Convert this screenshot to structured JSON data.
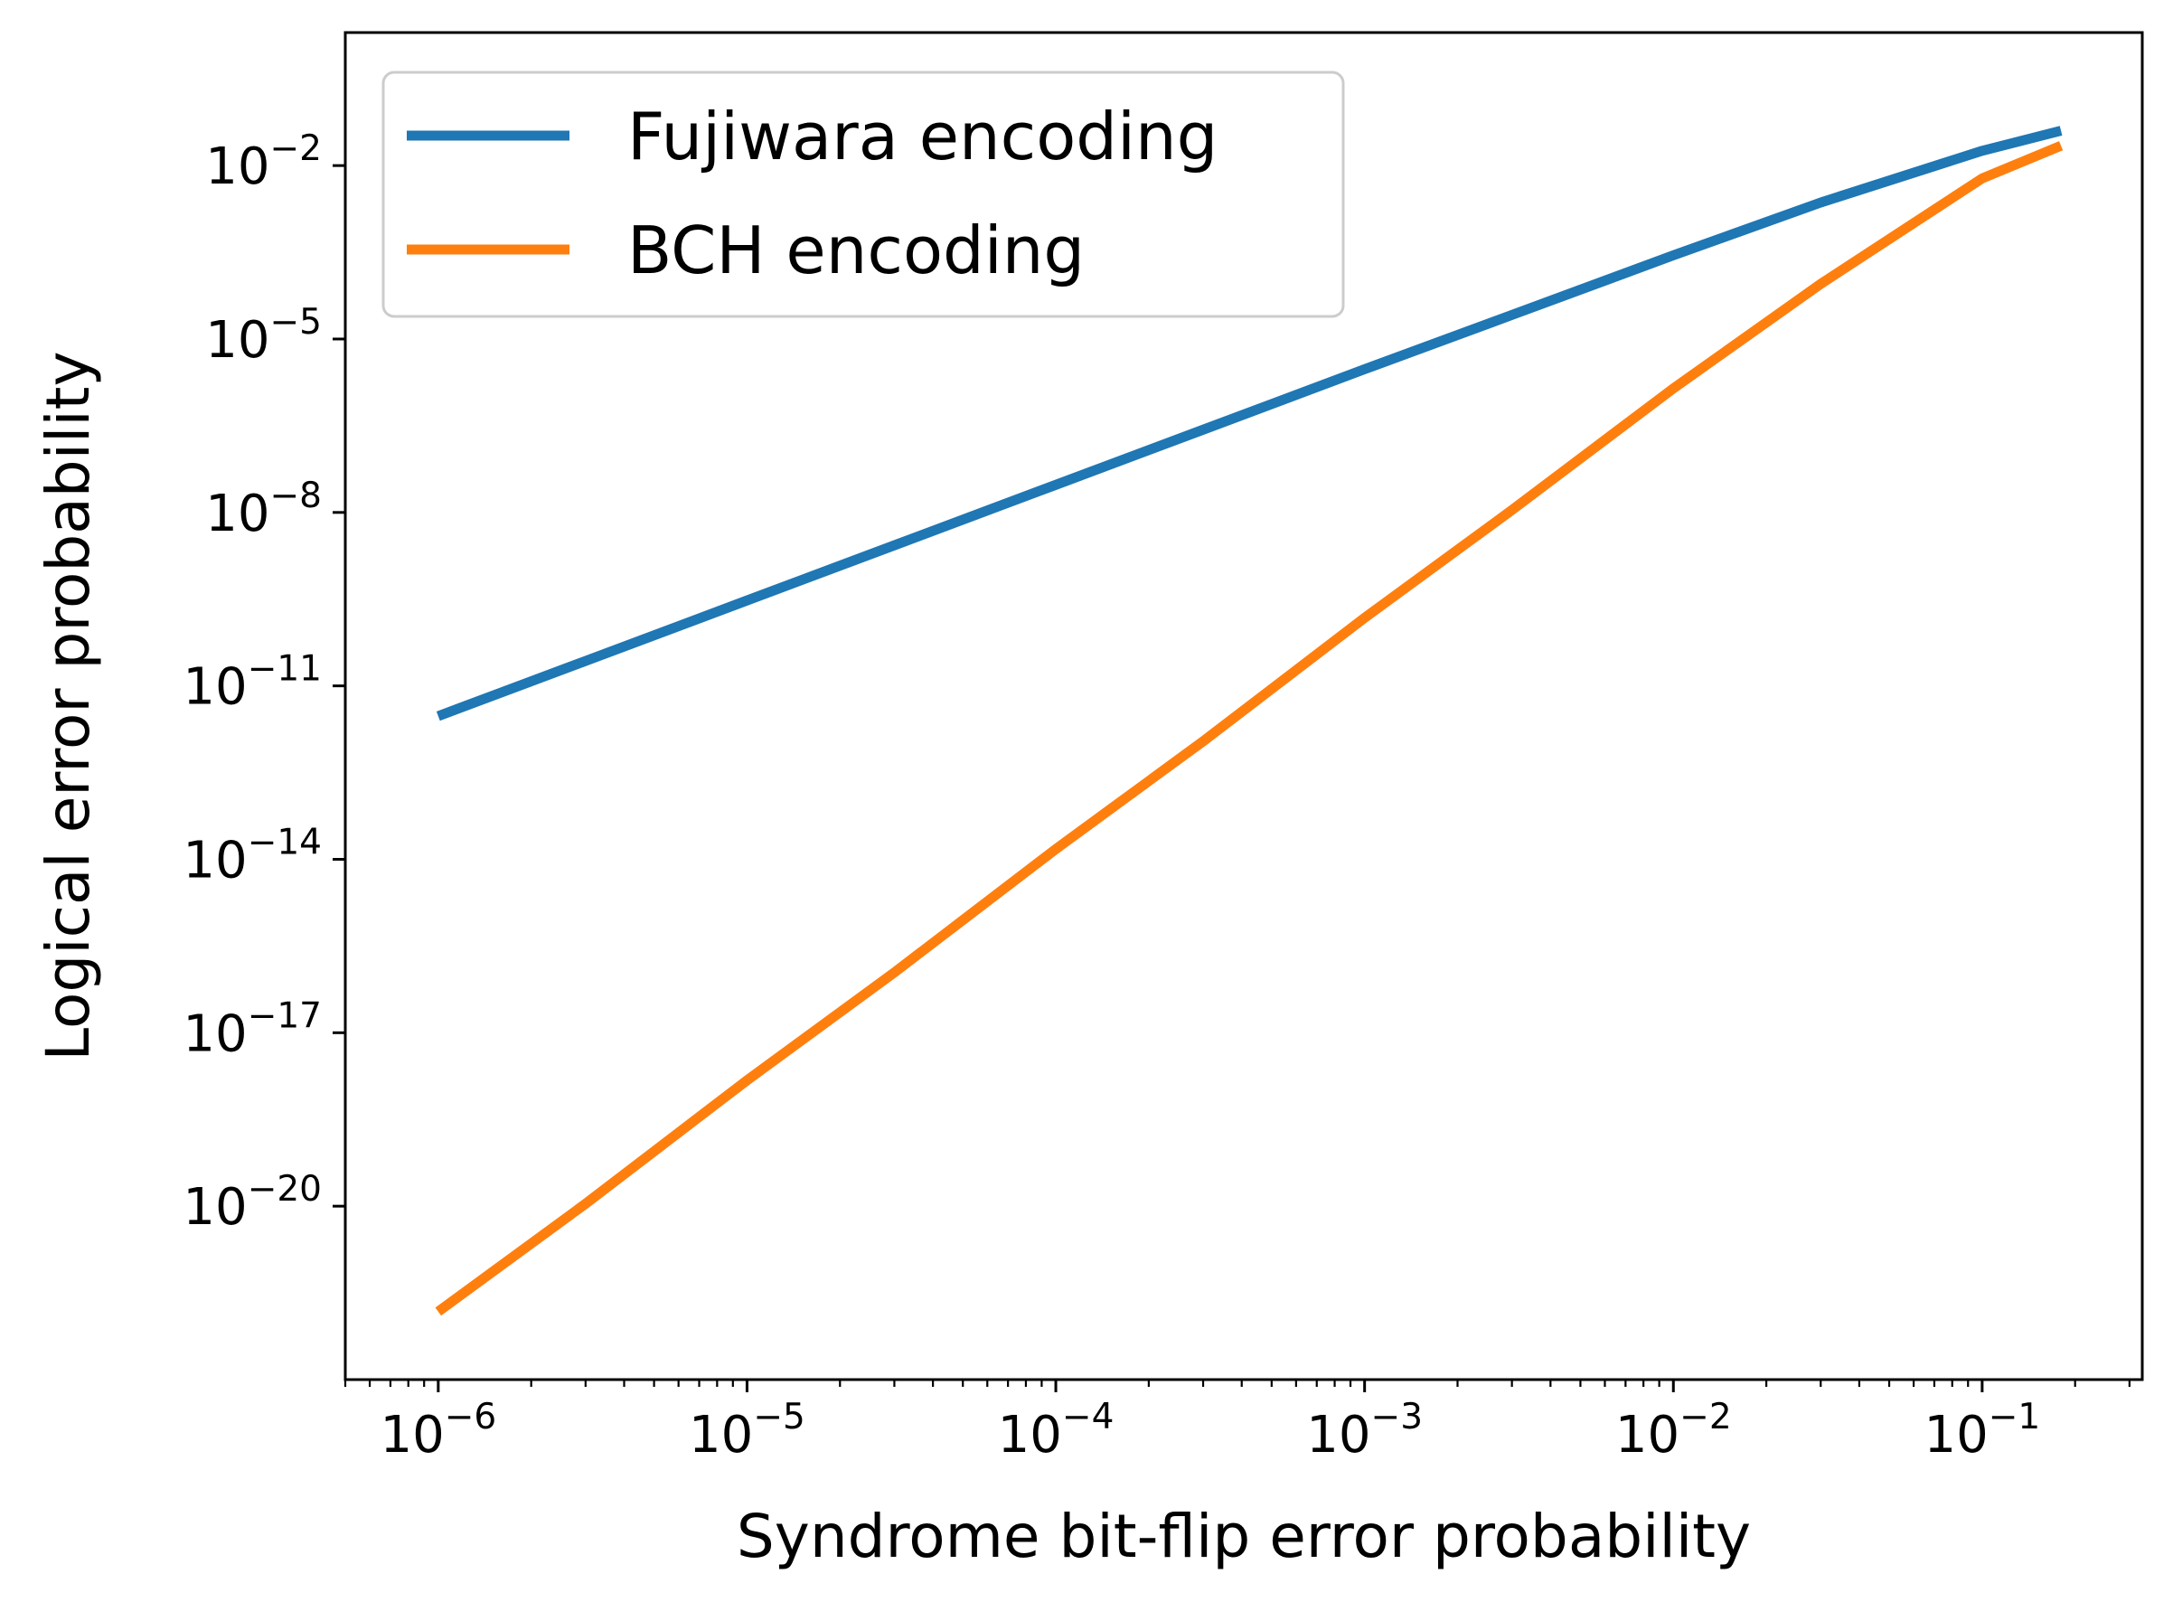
{
  "chart_data": {
    "type": "line",
    "title": "",
    "xlabel": "Syndrome bit-flip error probability",
    "ylabel": "Logical error probability",
    "xscale": "log",
    "yscale": "log",
    "xlim": [
      5e-07,
      0.33
    ],
    "ylim": [
      1e-23,
      2
    ],
    "x_ticks": [
      {
        "value": 1e-06,
        "base": "10",
        "exp": "−6"
      },
      {
        "value": 1e-05,
        "base": "10",
        "exp": "−5"
      },
      {
        "value": 0.0001,
        "base": "10",
        "exp": "−4"
      },
      {
        "value": 0.001,
        "base": "10",
        "exp": "−3"
      },
      {
        "value": 0.01,
        "base": "10",
        "exp": "−2"
      },
      {
        "value": 0.1,
        "base": "10",
        "exp": "−1"
      }
    ],
    "y_ticks": [
      {
        "value": 0.01,
        "base": "10",
        "exp": "−2"
      },
      {
        "value": 1e-05,
        "base": "10",
        "exp": "−5"
      },
      {
        "value": 1e-08,
        "base": "10",
        "exp": "−8"
      },
      {
        "value": 1e-11,
        "base": "10",
        "exp": "−11"
      },
      {
        "value": 1e-14,
        "base": "10",
        "exp": "−14"
      },
      {
        "value": 1e-17,
        "base": "10",
        "exp": "−17"
      },
      {
        "value": 1e-20,
        "base": "10",
        "exp": "−20"
      }
    ],
    "grid": false,
    "legend_position": "top-left",
    "series": [
      {
        "name": "Fujiwara encoding",
        "color": "#1f77b4",
        "x": [
          1e-06,
          3e-06,
          1e-05,
          3e-05,
          0.0001,
          0.0003,
          0.001,
          0.003,
          0.01,
          0.03,
          0.1,
          0.18
        ],
        "y": [
          3e-12,
          2.7e-11,
          3e-10,
          2.7e-09,
          3e-08,
          2.7e-07,
          3e-06,
          2.6e-05,
          0.00028,
          0.0023,
          0.018,
          0.04
        ]
      },
      {
        "name": "BCH encoding",
        "color": "#ff7f0e",
        "x": [
          1e-06,
          3e-06,
          1e-05,
          3e-05,
          0.0001,
          0.0003,
          0.001,
          0.003,
          0.01,
          0.03,
          0.1,
          0.18
        ],
        "y": [
          1.5e-22,
          1.1e-20,
          1.5e-18,
          1.1e-16,
          1.5e-14,
          1.1e-12,
          1.5e-10,
          1.1e-08,
          1.4e-06,
          9e-05,
          0.006,
          0.022
        ]
      }
    ]
  }
}
